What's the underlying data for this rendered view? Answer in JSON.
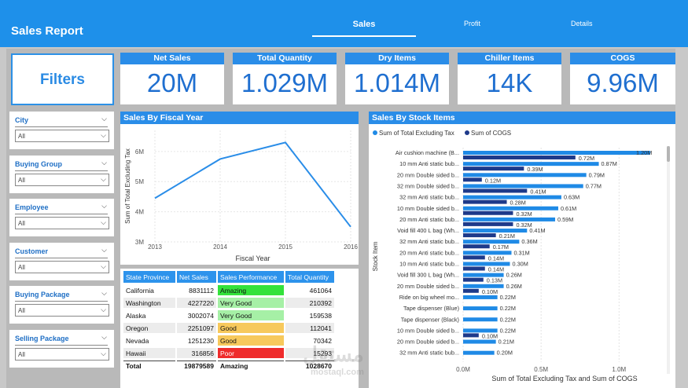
{
  "header": {
    "title": "Sales Report",
    "tabs": [
      "Sales",
      "Profit",
      "Details"
    ]
  },
  "filters": {
    "title": "Filters",
    "slicers": [
      {
        "label": "City",
        "value": "All"
      },
      {
        "label": "Buying Group",
        "value": "All"
      },
      {
        "label": "Employee",
        "value": "All"
      },
      {
        "label": "Customer",
        "value": "All"
      },
      {
        "label": "Buying Package",
        "value": "All"
      },
      {
        "label": "Selling Package",
        "value": "All"
      }
    ]
  },
  "kpis": [
    {
      "label": "Net Sales",
      "value": "20M"
    },
    {
      "label": "Total Quantity",
      "value": "1.029M"
    },
    {
      "label": "Dry Items",
      "value": "1.014M"
    },
    {
      "label": "Chiller Items",
      "value": "14K"
    },
    {
      "label": "COGS",
      "value": "9.96M"
    }
  ],
  "colors": {
    "accent": "#2a8de8",
    "dark_series": "#1e3a8a",
    "amazing": "#33e23b",
    "very_good": "#a6f0a6",
    "good": "#f7c95c",
    "poor": "#ef2b2b"
  },
  "fiscal_chart": {
    "title": "Sales By Fiscal Year",
    "chart_data": {
      "type": "line",
      "x": [
        2013,
        2014,
        2015,
        2016
      ],
      "y_values": [
        4.45,
        5.75,
        6.3,
        3.5
      ],
      "xlabel": "Fiscal Year",
      "ylabel": "Sum of Total Excluding Tax",
      "ytick_labels": [
        "3M",
        "4M",
        "5M",
        "6M"
      ],
      "yticks": [
        3,
        4,
        5,
        6
      ],
      "ylim": [
        3,
        6.7
      ],
      "grid": true
    }
  },
  "table": {
    "headers": [
      "State Province",
      "Net Sales",
      "Sales Performance",
      "Total Quantity"
    ],
    "rows": [
      {
        "state": "California",
        "sales": "8831112",
        "perf": "Amazing",
        "qty": "461064"
      },
      {
        "state": "Washington",
        "sales": "4227220",
        "perf": "Very Good",
        "qty": "210392"
      },
      {
        "state": "Alaska",
        "sales": "3002074",
        "perf": "Very Good",
        "qty": "159538"
      },
      {
        "state": "Oregon",
        "sales": "2251097",
        "perf": "Good",
        "qty": "112041"
      },
      {
        "state": "Nevada",
        "sales": "1251230",
        "perf": "Good",
        "qty": "70342"
      },
      {
        "state": "Hawaii",
        "sales": "316856",
        "perf": "Poor",
        "qty": "15293"
      }
    ],
    "total": {
      "state": "Total",
      "sales": "19879589",
      "perf": "Amazing",
      "qty": "1028670"
    }
  },
  "stock_chart": {
    "title": "Sales By Stock Items",
    "chart_data": {
      "type": "bar",
      "orientation": "horizontal",
      "legend": "top-left",
      "ylabel": "Stock Item",
      "xlabel": "Sum of Total Excluding Tax and Sum of COGS",
      "xtick_labels": [
        "0.0M",
        "0.5M",
        "1.0M"
      ],
      "xticks": [
        0,
        0.5,
        1.0
      ],
      "xlim": [
        0,
        1.2
      ],
      "categories": [
        "Air cushion machine (B...",
        "10 mm Anti static bub...",
        "20 mm Double sided b...",
        "32 mm Double sided b...",
        "32 mm Anti static bub...",
        "10 mm Double sided b...",
        "20 mm Anti static bub...",
        "Void fill 400 L bag (Wh...",
        "32 mm Anti static bub...",
        "20 mm Anti static bub...",
        "10 mm Anti static bub...",
        "Void fill 300 L bag (Wh...",
        "20 mm Double sided b...",
        "Ride on big wheel mo...",
        "Tape dispenser (Blue)",
        "Tape dispenser (Black)",
        "10 mm Double sided b...",
        "20 mm Double sided b...",
        "32 mm Anti static bub..."
      ],
      "series": [
        {
          "name": "Sum of Total Excluding Tax",
          "color": "#1f8ae6",
          "values": [
            1.2,
            0.87,
            0.79,
            0.77,
            0.63,
            0.61,
            0.59,
            0.41,
            0.36,
            0.31,
            0.3,
            0.26,
            0.26,
            0.22,
            0.22,
            0.22,
            0.22,
            0.21,
            0.2
          ],
          "labels": [
            "1.20M",
            "0.87M",
            "0.79M",
            "0.77M",
            "0.63M",
            "0.61M",
            "0.59M",
            "0.41M",
            "0.36M",
            "0.31M",
            "0.30M",
            "0.26M",
            "0.26M",
            "0.22M",
            "0.22M",
            "0.22M",
            "0.22M",
            "0.21M",
            "0.20M"
          ]
        },
        {
          "name": "Sum of COGS",
          "color": "#1e3a8a",
          "values": [
            0.72,
            0.39,
            0.12,
            0.41,
            0.28,
            0.32,
            0.32,
            0.21,
            0.17,
            0.14,
            0.14,
            0.13,
            0.1,
            null,
            null,
            null,
            0.1,
            null,
            null
          ],
          "labels": [
            "0.72M",
            "0.39M",
            "0.12M",
            "0.41M",
            "0.28M",
            "0.32M",
            "0.32M",
            "0.21M",
            "0.17M",
            "0.14M",
            "0.14M",
            "0.13M",
            "0.10M",
            "",
            "",
            "",
            "0.10M",
            "",
            ""
          ]
        }
      ]
    }
  },
  "watermark": {
    "line1": "مستقل",
    "line2": "mostaql.com"
  }
}
